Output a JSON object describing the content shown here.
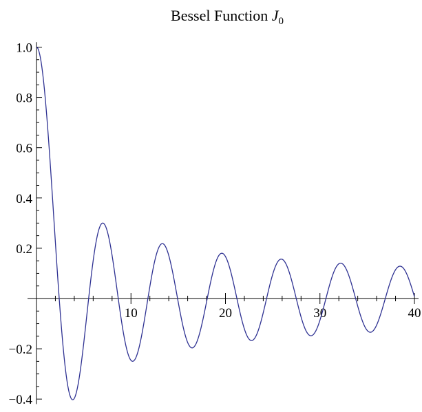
{
  "chart_data": {
    "type": "line",
    "title": "Bessel Function ",
    "title_symbol": "J",
    "title_subscript": "0",
    "xlabel": "",
    "ylabel": "",
    "xlim": [
      0,
      40
    ],
    "ylim": [
      -0.42,
      1.02
    ],
    "grid": false,
    "x_ticks": [
      10,
      20,
      30,
      40
    ],
    "y_ticks": [
      -0.4,
      -0.2,
      0.2,
      0.4,
      0.6,
      0.8,
      1.0
    ],
    "x_tick_labels": [
      "10",
      "20",
      "30",
      "40"
    ],
    "y_tick_labels": [
      "−0.4",
      "−0.2",
      "0.2",
      "0.4",
      "0.6",
      "0.8",
      "1.0"
    ],
    "series": [
      {
        "color": "#2e3192",
        "function": "J0(x)",
        "x_range": [
          0,
          40
        ],
        "extrema": [
          {
            "x": 0,
            "y": 1.0
          },
          {
            "x": 3.83,
            "y": -0.403
          },
          {
            "x": 7.02,
            "y": 0.3
          },
          {
            "x": 10.17,
            "y": -0.25
          },
          {
            "x": 13.32,
            "y": 0.218
          },
          {
            "x": 16.47,
            "y": -0.196
          },
          {
            "x": 19.62,
            "y": 0.18
          },
          {
            "x": 22.76,
            "y": -0.167
          },
          {
            "x": 25.9,
            "y": 0.156
          },
          {
            "x": 29.05,
            "y": -0.147
          },
          {
            "x": 32.19,
            "y": 0.139
          },
          {
            "x": 35.33,
            "y": -0.133
          },
          {
            "x": 38.47,
            "y": 0.127
          },
          {
            "x": 40,
            "y": 0.007
          }
        ]
      }
    ]
  }
}
